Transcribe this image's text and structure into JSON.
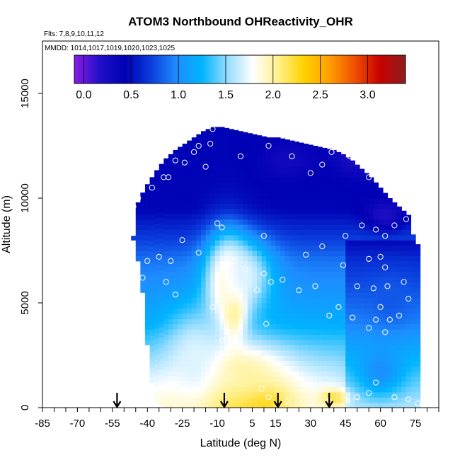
{
  "chart_data": {
    "type": "heatmap",
    "title": "ATOM3 Northbound OHReactivity_OHR",
    "flights_text": "Flts: 7,8,9,10,11,12",
    "dates_text": "MMDD: 1014,1017,1019,1020,1023,1025",
    "xlabel": "Latitude (deg N)",
    "ylabel": "Altitude (m)",
    "xlim": [
      -85,
      85
    ],
    "ylim": [
      0,
      17500
    ],
    "x_ticks": [
      -85,
      -70,
      -55,
      -40,
      -25,
      -10,
      5,
      15,
      30,
      45,
      60,
      75
    ],
    "y_ticks": [
      0,
      5000,
      10000,
      15000
    ],
    "colorbar": {
      "range": [
        -0.1,
        3.4
      ],
      "ticks": [
        0.0,
        0.5,
        1.0,
        1.5,
        2.0,
        2.5,
        3.0
      ],
      "tick_labels": [
        "0.0",
        "0.5",
        "1.0",
        "1.5",
        "2.0",
        "2.5",
        "3.0"
      ],
      "colors": [
        "#8a1ae6",
        "#2010c8",
        "#0000b4",
        "#0a3cdc",
        "#1e8cff",
        "#00b4ff",
        "#96dcff",
        "#ffffff",
        "#fff08c",
        "#ffd200",
        "#ffa000",
        "#f05000",
        "#c80000",
        "#8c1e1e"
      ]
    },
    "arrows_lat": [
      -53,
      -7,
      16,
      38
    ],
    "column_tops": [
      [
        -47,
        8200
      ],
      [
        -45,
        9800
      ],
      [
        -42,
        10500
      ],
      [
        -39,
        11000
      ],
      [
        -36,
        11500
      ],
      [
        -33,
        11900
      ],
      [
        -29,
        12300
      ],
      [
        -25,
        12600
      ],
      [
        -21,
        12900
      ],
      [
        -17,
        13200
      ],
      [
        -13,
        13400
      ],
      [
        -9,
        13400
      ],
      [
        -5,
        13300
      ],
      [
        -1,
        13200
      ],
      [
        3,
        13100
      ],
      [
        7,
        13000
      ],
      [
        11,
        12900
      ],
      [
        15,
        12900
      ],
      [
        19,
        12800
      ],
      [
        23,
        12700
      ],
      [
        27,
        12600
      ],
      [
        31,
        12500
      ],
      [
        35,
        12400
      ],
      [
        39,
        12300
      ],
      [
        43,
        12100
      ],
      [
        47,
        11800
      ],
      [
        51,
        11400
      ],
      [
        55,
        11000
      ],
      [
        59,
        10500
      ],
      [
        63,
        10000
      ],
      [
        67,
        9600
      ],
      [
        71,
        9200
      ],
      [
        74,
        7800
      ]
    ],
    "column_bottoms": [
      [
        -47,
        8000
      ],
      [
        -45,
        7000
      ],
      [
        -43,
        5500
      ],
      [
        -41,
        3000
      ],
      [
        -39,
        1200
      ],
      [
        -37,
        300
      ],
      [
        -34,
        0
      ]
    ],
    "features": [
      {
        "lat": 5,
        "alt": 400,
        "value": 2.7,
        "rlat": 12,
        "ralt": 650
      },
      {
        "lat": -4,
        "alt": 500,
        "value": 2.3,
        "rlat": 22,
        "ralt": 1300
      },
      {
        "lat": 0,
        "alt": 1600,
        "value": 2.0,
        "rlat": 20,
        "ralt": 1500
      },
      {
        "lat": -3,
        "alt": 5200,
        "value": 2.6,
        "rlat": 5,
        "ralt": 1600
      },
      {
        "lat": -6,
        "alt": 6000,
        "value": 2.0,
        "rlat": 9,
        "ralt": 2300
      },
      {
        "lat": 2,
        "alt": 6300,
        "value": 1.7,
        "rlat": 12,
        "ralt": 1700
      },
      {
        "lat": -20,
        "alt": 2200,
        "value": 1.7,
        "rlat": 12,
        "ralt": 2400
      },
      {
        "lat": 40,
        "alt": 500,
        "value": 2.2,
        "rlat": 6,
        "ralt": 400
      },
      {
        "lat": 60,
        "alt": 1800,
        "value": 1.0,
        "rlat": 10,
        "ralt": 1200
      },
      {
        "lat": 64,
        "alt": 5200,
        "value": 0.8,
        "rlat": 8,
        "ralt": 1200
      },
      {
        "lat": 50,
        "alt": 12000,
        "value": 0.2,
        "rlat": 10,
        "ralt": 900
      },
      {
        "lat": 62,
        "alt": 9200,
        "value": 0.2,
        "rlat": 8,
        "ralt": 700
      },
      {
        "lat": 20,
        "alt": 11800,
        "value": 0.3,
        "rlat": 12,
        "ralt": 900
      }
    ],
    "observations": [
      [
        -12,
        13300
      ],
      [
        -13,
        12600
      ],
      [
        -18,
        12500
      ],
      [
        -20,
        12200
      ],
      [
        -28,
        11800
      ],
      [
        -24,
        11700
      ],
      [
        -33,
        11000
      ],
      [
        -38,
        10500
      ],
      [
        -44,
        10000
      ],
      [
        -46,
        9600
      ],
      [
        -31,
        11000
      ],
      [
        -15,
        11500
      ],
      [
        0,
        12000
      ],
      [
        12,
        12500
      ],
      [
        22,
        12000
      ],
      [
        30,
        11200
      ],
      [
        35,
        11600
      ],
      [
        39,
        12200
      ],
      [
        47,
        12000
      ],
      [
        55,
        11000
      ],
      [
        64,
        10700
      ],
      [
        -10,
        8800
      ],
      [
        -8,
        8600
      ],
      [
        -25,
        8000
      ],
      [
        -40,
        7000
      ],
      [
        -35,
        7200
      ],
      [
        -30,
        7000
      ],
      [
        -18,
        7400
      ],
      [
        10,
        8200
      ],
      [
        28,
        7300
      ],
      [
        35,
        7700
      ],
      [
        45,
        8200
      ],
      [
        52,
        8700
      ],
      [
        58,
        8500
      ],
      [
        62,
        8200
      ],
      [
        66,
        8700
      ],
      [
        71,
        9000
      ],
      [
        55,
        7100
      ],
      [
        60,
        7200
      ],
      [
        62,
        6700
      ],
      [
        44,
        6800
      ],
      [
        50,
        5800
      ],
      [
        57,
        5700
      ],
      [
        63,
        5800
      ],
      [
        70,
        6000
      ],
      [
        72,
        5200
      ],
      [
        60,
        4800
      ],
      [
        58,
        4200
      ],
      [
        55,
        3800
      ],
      [
        64,
        4200
      ],
      [
        68,
        4400
      ],
      [
        62,
        3600
      ],
      [
        48,
        4300
      ],
      [
        42,
        4800
      ],
      [
        38,
        4400
      ],
      [
        32,
        5800
      ],
      [
        25,
        5600
      ],
      [
        18,
        6100
      ],
      [
        13,
        6000
      ],
      [
        10,
        6400
      ],
      [
        7,
        5600
      ],
      [
        2,
        6600
      ],
      [
        -3,
        7000
      ],
      [
        -7,
        5200
      ],
      [
        -12,
        4800
      ],
      [
        -32,
        6000
      ],
      [
        -28,
        5400
      ],
      [
        -42,
        6200
      ],
      [
        -46,
        5200
      ],
      [
        11,
        4000
      ],
      [
        -8,
        3200
      ],
      [
        9,
        900
      ],
      [
        12,
        500
      ],
      [
        20,
        300
      ],
      [
        30,
        200
      ],
      [
        38,
        300
      ],
      [
        50,
        500
      ],
      [
        55,
        700
      ],
      [
        58,
        1200
      ],
      [
        66,
        500
      ],
      [
        72,
        400
      ],
      [
        76,
        200
      ]
    ]
  }
}
